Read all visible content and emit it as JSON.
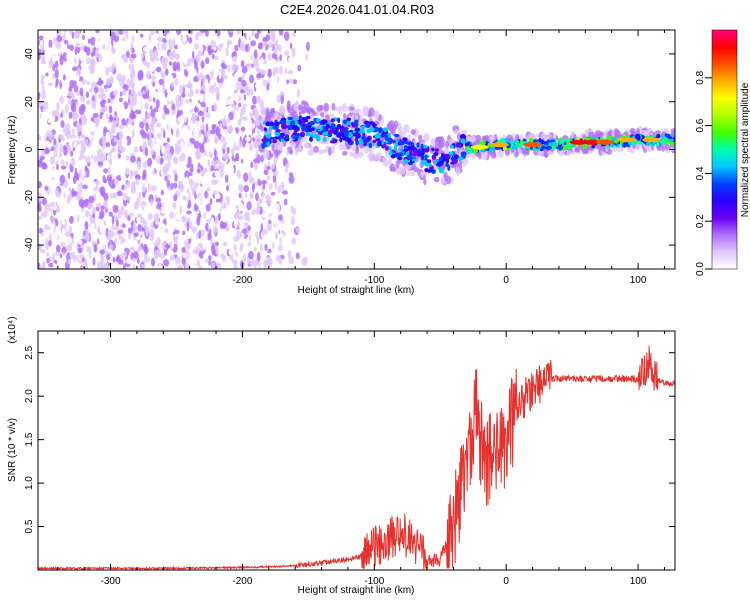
{
  "title": "C2E4.2026.041.01.04.R03",
  "chart_data": [
    {
      "type": "heatmap",
      "xlabel": "Height of straight line (km)",
      "ylabel": "Frequency (Hz)",
      "xlim": [
        -355,
        128
      ],
      "ylim": [
        -50,
        50
      ],
      "x_ticks": [
        -300,
        -200,
        -100,
        0,
        100
      ],
      "y_ticks": [
        -40,
        -20,
        0,
        20,
        40
      ],
      "colorbar": {
        "label": "Normalized spectral amplitude",
        "range": [
          0,
          1
        ],
        "ticks": [
          0.0,
          0.2,
          0.4,
          0.6,
          0.8
        ],
        "colors": [
          "#ffffff",
          "#e0c8ff",
          "#b070ff",
          "#6a00f0",
          "#2a00ff",
          "#0040ff",
          "#00c8ff",
          "#00ffb0",
          "#40ff00",
          "#b0ff00",
          "#ffff00",
          "#ffb000",
          "#ff5000",
          "#ff0000",
          "#ff0080"
        ]
      },
      "ridge": [
        {
          "x": -185,
          "y": 6
        },
        {
          "x": -160,
          "y": 9
        },
        {
          "x": -140,
          "y": 8
        },
        {
          "x": -120,
          "y": 8
        },
        {
          "x": -100,
          "y": 6
        },
        {
          "x": -80,
          "y": 0
        },
        {
          "x": -60,
          "y": -4
        },
        {
          "x": -45,
          "y": -5
        },
        {
          "x": -35,
          "y": 1
        },
        {
          "x": -20,
          "y": 1
        },
        {
          "x": 0,
          "y": 2
        },
        {
          "x": 20,
          "y": 2
        },
        {
          "x": 40,
          "y": 2
        },
        {
          "x": 60,
          "y": 3
        },
        {
          "x": 80,
          "y": 3
        },
        {
          "x": 100,
          "y": 4
        },
        {
          "x": 128,
          "y": 4
        }
      ],
      "noise_extent": [
        -355,
        -150
      ]
    },
    {
      "type": "line",
      "xlabel": "Height of straight line (km)",
      "ylabel": "SNR (10 * v/v)",
      "y_multiplier": "(x10⁴)",
      "xlim": [
        -355,
        128
      ],
      "ylim": [
        0,
        2.75
      ],
      "x_ticks": [
        -300,
        -200,
        -100,
        0,
        100
      ],
      "y_ticks": [
        0.5,
        1.0,
        1.5,
        2.0,
        2.5
      ],
      "color": "#e8302c",
      "series": [
        {
          "x": [
            -355,
            -300,
            -250,
            -200,
            -170,
            -150,
            -130,
            -110,
            -100,
            -90,
            -80,
            -70,
            -60,
            -50,
            -40,
            -35,
            -30,
            -25,
            -22,
            -20,
            -15,
            -10,
            -5,
            0,
            10,
            20,
            30,
            40,
            50,
            60,
            70,
            80,
            90,
            100,
            105,
            108,
            110,
            115,
            120,
            128
          ],
          "y": [
            0.02,
            0.02,
            0.02,
            0.03,
            0.04,
            0.06,
            0.1,
            0.15,
            0.25,
            0.35,
            0.45,
            0.3,
            0.1,
            0.12,
            0.5,
            0.9,
            1.3,
            1.6,
            1.9,
            1.5,
            1.2,
            1.4,
            1.3,
            1.5,
            1.9,
            2.1,
            2.2,
            2.2,
            2.2,
            2.2,
            2.2,
            2.2,
            2.2,
            2.2,
            2.3,
            2.4,
            2.3,
            2.2,
            2.15,
            2.15
          ]
        }
      ]
    }
  ]
}
